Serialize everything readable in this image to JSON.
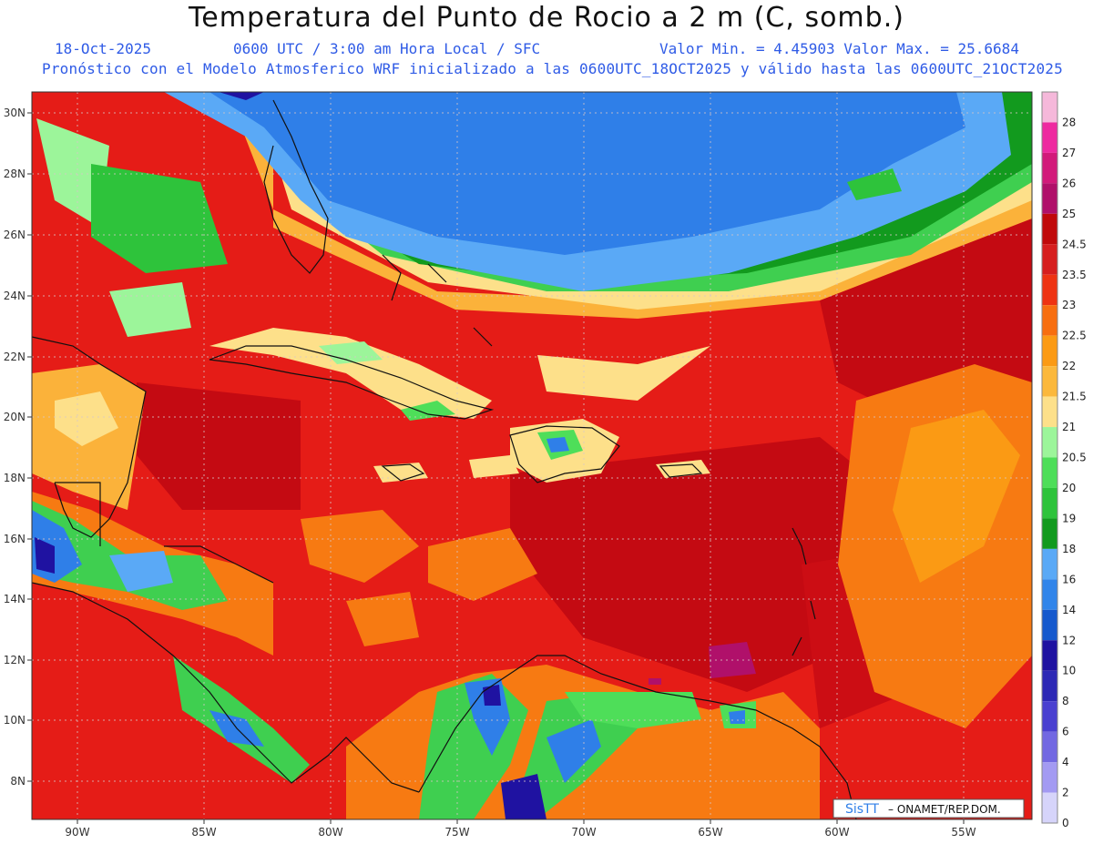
{
  "title": "Temperatura del Punto de Rocio a 2 m (C, somb.)",
  "date": "18-Oct-2025",
  "time_info": "0600 UTC / 3:00 am Hora Local / SFC",
  "min_max": "Valor Min. = 4.45903  Valor Max. = 25.6684",
  "forecast_note": "Pronóstico con el Modelo Atmosferico WRF inicializado a las 0600UTC_18OCT2025 y válido hasta las  0600UTC_21OCT2025",
  "lat_labels": [
    "30N",
    "28N",
    "26N",
    "24N",
    "22N",
    "20N",
    "18N",
    "16N",
    "14N",
    "12N",
    "10N",
    "8N"
  ],
  "lon_labels": [
    "90W",
    "85W",
    "80W",
    "75W",
    "70W",
    "65W",
    "60W",
    "55W"
  ],
  "legend": {
    "labels": [
      "28",
      "27",
      "26",
      "25",
      "24.5",
      "23.5",
      "23",
      "22.5",
      "22",
      "21.5",
      "21",
      "20.5",
      "20",
      "19",
      "18",
      "16",
      "14",
      "12",
      "10",
      "8",
      "6",
      "4",
      "2",
      "0"
    ],
    "colors": [
      "#f5b8da",
      "#ee2aa0",
      "#d21a7a",
      "#b0106a",
      "#c0090a",
      "#d61e1e",
      "#ee3312",
      "#f76e10",
      "#fb9a14",
      "#fbb83c",
      "#fde08a",
      "#9cf59a",
      "#4ede59",
      "#2ec33b",
      "#129a1e",
      "#5aa9f6",
      "#3185ea",
      "#1659cd",
      "#1f12a1",
      "#2d28b5",
      "#4a40d0",
      "#7268e2",
      "#a39af2",
      "#d6d4fa"
    ]
  },
  "map_colors": {
    "background": "#e51c17",
    "deep_red": "#c40a12",
    "orange": "#f77a12",
    "light_orange": "#fbb23a",
    "yellow": "#fde08a",
    "light_green": "#9cf59a",
    "green": "#3fcf50",
    "dark_green": "#129a1e",
    "light_blue": "#5aa9f6",
    "blue": "#2f7fe8",
    "navy": "#1f12a1",
    "magenta": "#b0106a"
  },
  "brand": {
    "logo_text": "SisTT",
    "credit": "– ONAMET/REP.DOM."
  }
}
